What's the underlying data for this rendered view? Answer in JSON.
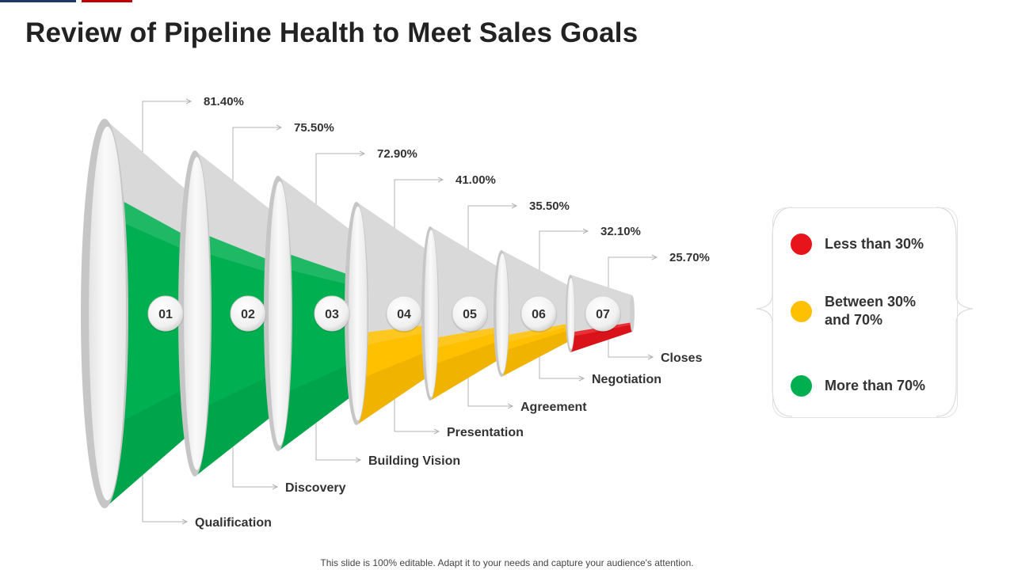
{
  "title": "Review of Pipeline Health to Meet Sales Goals",
  "footer": "This slide is 100% editable. Adapt it to your needs and capture your audience's attention.",
  "colors": {
    "red": "#e8141b",
    "yellow": "#ffc000",
    "green": "#00b050",
    "shell": "#d9d9d9",
    "rim": "#c6c6c6",
    "inner": "#f3f3f3",
    "text": "#333333",
    "leader": "#b3b3b3",
    "topbar_blue": "#1f3864",
    "topbar_red": "#c00000"
  },
  "legend": [
    {
      "label": "Less than 30%",
      "color": "#e8141b"
    },
    {
      "label": "Between 30% and 70%",
      "color": "#ffc000"
    },
    {
      "label": "More than 70%",
      "color": "#00b050"
    }
  ],
  "chart_data": {
    "type": "funnel",
    "title": "Review of Pipeline Health to Meet Sales Goals",
    "unit": "%",
    "thresholds": {
      "low": 30,
      "high": 70
    },
    "stages": [
      {
        "number": "01",
        "name": "Qualification",
        "value": 81.4,
        "value_label": "81.40%",
        "band": "More than 70%"
      },
      {
        "number": "02",
        "name": "Discovery",
        "value": 75.5,
        "value_label": "75.50%",
        "band": "More than 70%"
      },
      {
        "number": "03",
        "name": "Building Vision",
        "value": 72.9,
        "value_label": "72.90%",
        "band": "More than 70%"
      },
      {
        "number": "04",
        "name": "Presentation",
        "value": 41.0,
        "value_label": "41.00%",
        "band": "Between 30% and 70%"
      },
      {
        "number": "05",
        "name": "Agreement",
        "value": 35.5,
        "value_label": "35.50%",
        "band": "Between 30% and 70%"
      },
      {
        "number": "06",
        "name": "Negotiation",
        "value": 32.1,
        "value_label": "32.10%",
        "band": "Between 30% and 70%"
      },
      {
        "number": "07",
        "name": "Closes",
        "value": 25.7,
        "value_label": "25.70%",
        "band": "Less than 30%"
      }
    ]
  }
}
